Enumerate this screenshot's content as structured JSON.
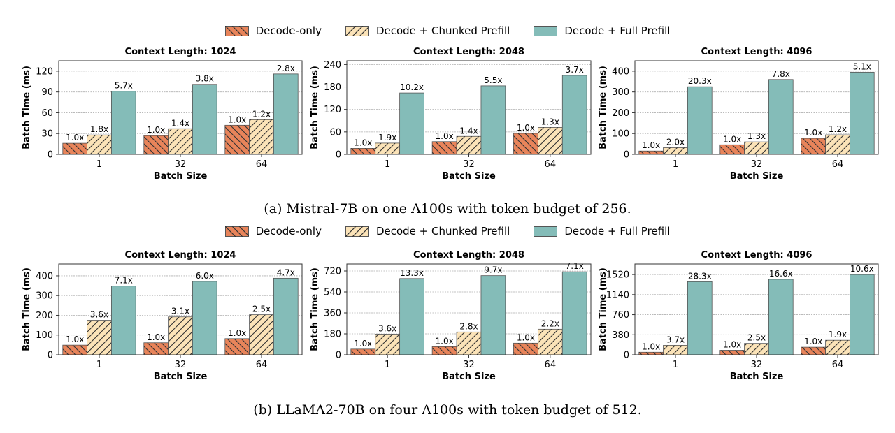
{
  "legend": {
    "decode_only": "Decode-only",
    "chunked": "Decode + Chunked Prefill",
    "full": "Decode + Full Prefill"
  },
  "colors": {
    "decode_only": "#e8845a",
    "chunked": "#fbe3b8",
    "full": "#84bcb8",
    "edge": "#555555"
  },
  "captions": {
    "a": "(a) Mistral-7B on one A100s with token budget of 256.",
    "b": "(b) LLaMA2-70B on four A100s with token budget of 512."
  },
  "chart_data": [
    {
      "type": "bar",
      "group": "a",
      "title": "Context Length: 1024",
      "xlabel": "Batch Size",
      "ylabel": "Batch Time (ms)",
      "categories": [
        "1",
        "32",
        "64"
      ],
      "ylim": [
        0,
        135
      ],
      "yticks": [
        0,
        30,
        60,
        90,
        120
      ],
      "series": [
        {
          "name": "Decode-only",
          "values": [
            16,
            27,
            42
          ],
          "labels": [
            "1.0x",
            "1.0x",
            "1.0x"
          ]
        },
        {
          "name": "Decode + Chunked Prefill",
          "values": [
            28,
            37,
            50
          ],
          "labels": [
            "1.8x",
            "1.4x",
            "1.2x"
          ]
        },
        {
          "name": "Decode + Full Prefill",
          "values": [
            91,
            101,
            116
          ],
          "labels": [
            "5.7x",
            "3.8x",
            "2.8x"
          ]
        }
      ]
    },
    {
      "type": "bar",
      "group": "a",
      "title": "Context Length: 2048",
      "xlabel": "Batch Size",
      "ylabel": "Batch Time (ms)",
      "categories": [
        "1",
        "32",
        "64"
      ],
      "ylim": [
        0,
        250
      ],
      "yticks": [
        0,
        60,
        120,
        180,
        240
      ],
      "series": [
        {
          "name": "Decode-only",
          "values": [
            16,
            34,
            56
          ],
          "labels": [
            "1.0x",
            "1.0x",
            "1.0x"
          ]
        },
        {
          "name": "Decode + Chunked Prefill",
          "values": [
            30,
            48,
            72
          ],
          "labels": [
            "1.9x",
            "1.4x",
            "1.3x"
          ]
        },
        {
          "name": "Decode + Full Prefill",
          "values": [
            164,
            183,
            211
          ],
          "labels": [
            "10.2x",
            "5.5x",
            "3.7x"
          ]
        }
      ]
    },
    {
      "type": "bar",
      "group": "a",
      "title": "Context Length: 4096",
      "xlabel": "Batch Size",
      "ylabel": "Batch Time (ms)",
      "categories": [
        "1",
        "32",
        "64"
      ],
      "ylim": [
        0,
        450
      ],
      "yticks": [
        0,
        100,
        200,
        300,
        400
      ],
      "series": [
        {
          "name": "Decode-only",
          "values": [
            16,
            46,
            77
          ],
          "labels": [
            "1.0x",
            "1.0x",
            "1.0x"
          ]
        },
        {
          "name": "Decode + Chunked Prefill",
          "values": [
            32,
            60,
            94
          ],
          "labels": [
            "2.0x",
            "1.3x",
            "1.2x"
          ]
        },
        {
          "name": "Decode + Full Prefill",
          "values": [
            325,
            360,
            395
          ],
          "labels": [
            "20.3x",
            "7.8x",
            "5.1x"
          ]
        }
      ]
    },
    {
      "type": "bar",
      "group": "b",
      "title": "Context Length: 1024",
      "xlabel": "Batch Size",
      "ylabel": "Batch Time (ms)",
      "categories": [
        "1",
        "32",
        "64"
      ],
      "ylim": [
        0,
        460
      ],
      "yticks": [
        0,
        100,
        200,
        300,
        400
      ],
      "series": [
        {
          "name": "Decode-only",
          "values": [
            49,
            61,
            82
          ],
          "labels": [
            "1.0x",
            "1.0x",
            "1.0x"
          ]
        },
        {
          "name": "Decode + Chunked Prefill",
          "values": [
            175,
            192,
            203
          ],
          "labels": [
            "3.6x",
            "3.1x",
            "2.5x"
          ]
        },
        {
          "name": "Decode + Full Prefill",
          "values": [
            348,
            372,
            388
          ],
          "labels": [
            "7.1x",
            "6.0x",
            "4.7x"
          ]
        }
      ]
    },
    {
      "type": "bar",
      "group": "b",
      "title": "Context Length: 2048",
      "xlabel": "Batch Size",
      "ylabel": "Batch Time (ms)",
      "categories": [
        "1",
        "32",
        "64"
      ],
      "ylim": [
        0,
        780
      ],
      "yticks": [
        0,
        180,
        360,
        540,
        720
      ],
      "series": [
        {
          "name": "Decode-only",
          "values": [
            49,
            70,
            100
          ],
          "labels": [
            "1.0x",
            "1.0x",
            "1.0x"
          ]
        },
        {
          "name": "Decode + Chunked Prefill",
          "values": [
            177,
            196,
            220
          ],
          "labels": [
            "3.6x",
            "2.8x",
            "2.2x"
          ]
        },
        {
          "name": "Decode + Full Prefill",
          "values": [
            655,
            680,
            713
          ],
          "labels": [
            "13.3x",
            "9.7x",
            "7.1x"
          ]
        }
      ]
    },
    {
      "type": "bar",
      "group": "b",
      "title": "Context Length: 4096",
      "xlabel": "Batch Size",
      "ylabel": "Batch Time (ms)",
      "categories": [
        "1",
        "32",
        "64"
      ],
      "ylim": [
        0,
        1720
      ],
      "yticks": [
        0,
        380,
        760,
        1140,
        1520
      ],
      "series": [
        {
          "name": "Decode-only",
          "values": [
            49,
            86,
            144
          ],
          "labels": [
            "1.0x",
            "1.0x",
            "1.0x"
          ]
        },
        {
          "name": "Decode + Chunked Prefill",
          "values": [
            180,
            216,
            275
          ],
          "labels": [
            "3.7x",
            "2.5x",
            "1.9x"
          ]
        },
        {
          "name": "Decode + Full Prefill",
          "values": [
            1385,
            1430,
            1520
          ],
          "labels": [
            "28.3x",
            "16.6x",
            "10.6x"
          ]
        }
      ]
    }
  ]
}
